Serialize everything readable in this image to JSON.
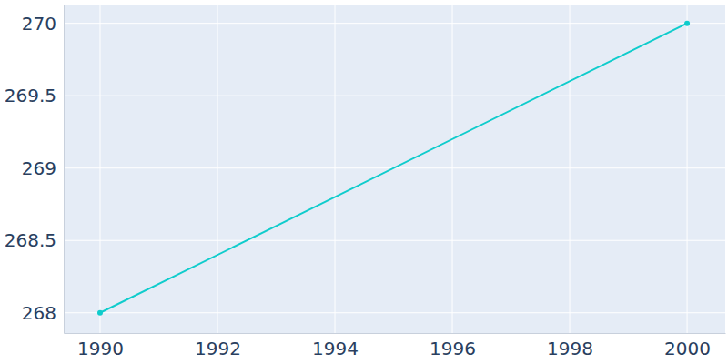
{
  "chart_data": {
    "type": "line",
    "x": [
      1990,
      2000
    ],
    "values": [
      268,
      270
    ],
    "color": "#0fcccc",
    "marker": "circle",
    "xlim": [
      1989.38,
      2000.65
    ],
    "xticks": [
      1990,
      1992,
      1994,
      1996,
      1998,
      2000
    ],
    "ylim": [
      267.86,
      270.13
    ],
    "yticks": [
      268,
      268.5,
      269,
      269.5,
      270
    ],
    "grid": true
  }
}
